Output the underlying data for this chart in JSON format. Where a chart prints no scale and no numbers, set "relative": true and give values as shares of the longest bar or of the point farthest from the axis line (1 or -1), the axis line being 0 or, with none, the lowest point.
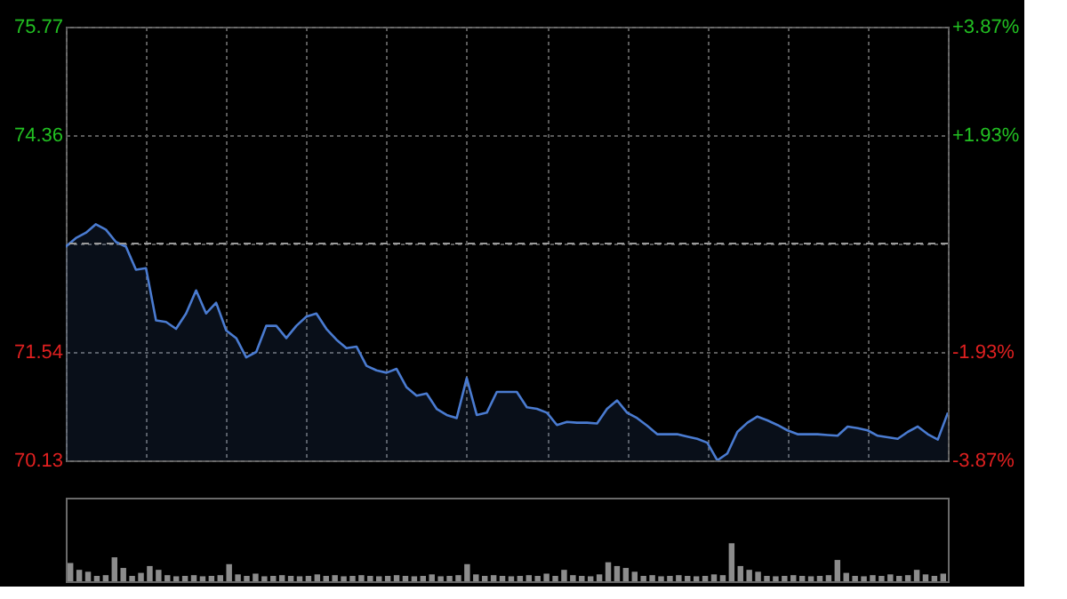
{
  "chart_data": [
    {
      "type": "area",
      "series": [
        {
          "color": "#4a7bd0",
          "values": [
            72.91,
            73.02,
            73.09,
            73.2,
            73.13,
            72.97,
            72.91,
            72.61,
            72.63,
            71.95,
            71.93,
            71.84,
            72.04,
            72.34,
            72.04,
            72.18,
            71.82,
            71.72,
            71.47,
            71.54,
            71.88,
            71.88,
            71.72,
            71.88,
            72.0,
            72.04,
            71.84,
            71.7,
            71.59,
            71.61,
            71.36,
            71.3,
            71.27,
            71.32,
            71.08,
            70.97,
            71.0,
            70.8,
            70.72,
            70.68,
            71.2,
            70.72,
            70.75,
            71.02,
            71.02,
            71.02,
            70.82,
            70.8,
            70.75,
            70.59,
            70.63,
            70.62,
            70.62,
            70.61,
            70.8,
            70.91,
            70.75,
            70.68,
            70.58,
            70.47,
            70.47,
            70.47,
            70.44,
            70.41,
            70.36,
            70.13,
            70.22,
            70.5,
            70.62,
            70.7,
            70.65,
            70.59,
            70.52,
            70.47,
            70.47,
            70.47,
            70.46,
            70.45,
            70.57,
            70.55,
            70.52,
            70.45,
            70.43,
            70.41,
            70.5,
            70.57,
            70.47,
            70.4,
            70.75
          ]
        }
      ],
      "categories": [
        null,
        null,
        null,
        null,
        null,
        null,
        null,
        null,
        null,
        null,
        null,
        null,
        null,
        null,
        null,
        null,
        null,
        null,
        null,
        null,
        null,
        null,
        null,
        null,
        null,
        null,
        null,
        null,
        null,
        null,
        null,
        null,
        null,
        null,
        null,
        null,
        null,
        null,
        null,
        null,
        null,
        null,
        null,
        null,
        null,
        null,
        null,
        null,
        null,
        null,
        null,
        null,
        null,
        null,
        null,
        null,
        null,
        null,
        null,
        null,
        null,
        null,
        null,
        null,
        null,
        null,
        null,
        null,
        null,
        null,
        null,
        null,
        null,
        null,
        null,
        null,
        null,
        null,
        null,
        null,
        null,
        null,
        null,
        null,
        null,
        null,
        null,
        null,
        null
      ],
      "ylim": [
        70.13,
        75.77
      ],
      "yticks": [
        70.13,
        71.54,
        {
          "value": 72.95,
          "label": null
        },
        74.36,
        75.77
      ],
      "y2lim": [
        -3.87,
        3.87
      ],
      "y2ticks": [
        {
          "value": -3.87,
          "label": "-3.87%"
        },
        {
          "value": -1.93,
          "label": "-1.93%"
        },
        {
          "value": 1.93,
          "label": "+1.93%"
        },
        {
          "value": 3.87,
          "label": "+3.87%"
        }
      ],
      "ref_lines": [
        {
          "axis": "y",
          "value": 72.95,
          "line_style": "dashed",
          "color": "#9a9a9a"
        }
      ],
      "grid": true,
      "tick_labels": "y"
    },
    {
      "type": "bar",
      "relative": true,
      "color": "#8c8c8c",
      "tick_labels": false,
      "categories": [
        null,
        null,
        null,
        null,
        null,
        null,
        null,
        null,
        null,
        null,
        null,
        null,
        null,
        null,
        null,
        null,
        null,
        null,
        null,
        null,
        null,
        null,
        null,
        null,
        null,
        null,
        null,
        null,
        null,
        null,
        null,
        null,
        null,
        null,
        null,
        null,
        null,
        null,
        null,
        null,
        null,
        null,
        null,
        null,
        null,
        null,
        null,
        null,
        null,
        null,
        null,
        null,
        null,
        null,
        null,
        null,
        null,
        null,
        null,
        null,
        null,
        null,
        null,
        null,
        null,
        null,
        null,
        null,
        null,
        null,
        null,
        null,
        null,
        null,
        null,
        null,
        null,
        null,
        null,
        null,
        null,
        null,
        null,
        null,
        null,
        null,
        null,
        null,
        null,
        null,
        null,
        null,
        null,
        null,
        null,
        null,
        null,
        null,
        null,
        null
      ],
      "values": [
        0.48,
        0.3,
        0.25,
        0.14,
        0.16,
        0.63,
        0.35,
        0.14,
        0.22,
        0.4,
        0.3,
        0.16,
        0.13,
        0.14,
        0.16,
        0.13,
        0.14,
        0.16,
        0.45,
        0.18,
        0.14,
        0.2,
        0.13,
        0.14,
        0.16,
        0.14,
        0.13,
        0.14,
        0.18,
        0.14,
        0.16,
        0.13,
        0.14,
        0.16,
        0.14,
        0.13,
        0.14,
        0.16,
        0.14,
        0.13,
        0.14,
        0.18,
        0.13,
        0.14,
        0.16,
        0.45,
        0.18,
        0.14,
        0.16,
        0.14,
        0.13,
        0.14,
        0.16,
        0.14,
        0.2,
        0.14,
        0.3,
        0.16,
        0.14,
        0.13,
        0.18,
        0.5,
        0.4,
        0.35,
        0.25,
        0.14,
        0.16,
        0.13,
        0.14,
        0.16,
        0.14,
        0.13,
        0.14,
        0.18,
        0.16,
        1,
        0.4,
        0.3,
        0.25,
        0.14,
        0.13,
        0.14,
        0.16,
        0.14,
        0.13,
        0.14,
        0.16,
        0.56,
        0.22,
        0.14,
        0.13,
        0.16,
        0.14,
        0.18,
        0.14,
        0.16,
        0.3,
        0.18,
        0.14,
        0.2
      ]
    }
  ]
}
